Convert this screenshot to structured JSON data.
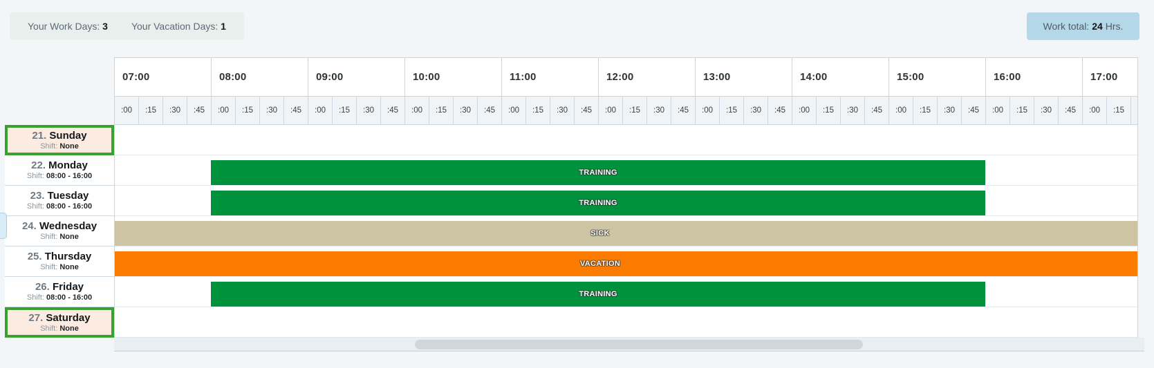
{
  "summary": {
    "work_days_label": "Your Work Days:",
    "work_days_value": "3",
    "vacation_days_label": "Your Vacation Days:",
    "vacation_days_value": "1"
  },
  "work_total": {
    "label": "Work total:",
    "value": "24",
    "unit": "Hrs."
  },
  "labels": {
    "shift_prefix": "Shift:"
  },
  "timeline": {
    "hours": [
      {
        "label": "07:00",
        "quarters": [
          ":00",
          ":15",
          ":30",
          ":45"
        ]
      },
      {
        "label": "08:00",
        "quarters": [
          ":00",
          ":15",
          ":30",
          ":45"
        ]
      },
      {
        "label": "09:00",
        "quarters": [
          ":00",
          ":15",
          ":30",
          ":45"
        ]
      },
      {
        "label": "10:00",
        "quarters": [
          ":00",
          ":15",
          ":30",
          ":45"
        ]
      },
      {
        "label": "11:00",
        "quarters": [
          ":00",
          ":15",
          ":30",
          ":45"
        ]
      },
      {
        "label": "12:00",
        "quarters": [
          ":00",
          ":15",
          ":30",
          ":45"
        ]
      },
      {
        "label": "13:00",
        "quarters": [
          ":00",
          ":15",
          ":30",
          ":45"
        ]
      },
      {
        "label": "14:00",
        "quarters": [
          ":00",
          ":15",
          ":30",
          ":45"
        ]
      },
      {
        "label": "15:00",
        "quarters": [
          ":00",
          ":15",
          ":30",
          ":45"
        ]
      },
      {
        "label": "16:00",
        "quarters": [
          ":00",
          ":15",
          ":30",
          ":45"
        ]
      },
      {
        "label": "17:00",
        "quarters": [
          ":00",
          ":15"
        ],
        "truncated": true
      }
    ]
  },
  "days": [
    {
      "number": "21.",
      "name": "Sunday",
      "shift": "None",
      "highlighted": true,
      "bar": null
    },
    {
      "number": "22.",
      "name": "Monday",
      "shift": "08:00 - 16:00",
      "highlighted": false,
      "bar": {
        "label": "TRAINING",
        "type": "training",
        "start": "08:00",
        "end": "16:00"
      }
    },
    {
      "number": "23.",
      "name": "Tuesday",
      "shift": "08:00 - 16:00",
      "highlighted": false,
      "bar": {
        "label": "TRAINING",
        "type": "training",
        "start": "08:00",
        "end": "16:00"
      }
    },
    {
      "number": "24.",
      "name": "Wednesday",
      "shift": "None",
      "highlighted": false,
      "bar": {
        "label": "SICK",
        "type": "sick",
        "full_width": true
      }
    },
    {
      "number": "25.",
      "name": "Thursday",
      "shift": "None",
      "highlighted": false,
      "bar": {
        "label": "VACATION",
        "type": "vacation",
        "full_width": true
      }
    },
    {
      "number": "26.",
      "name": "Friday",
      "shift": "08:00 - 16:00",
      "highlighted": false,
      "bar": {
        "label": "TRAINING",
        "type": "training",
        "start": "08:00",
        "end": "16:00"
      }
    },
    {
      "number": "27.",
      "name": "Saturday",
      "shift": "None",
      "highlighted": true,
      "bar": null
    }
  ],
  "colors": {
    "training": "#00913c",
    "sick": "#ccc4a3",
    "vacation": "#fb7c00",
    "highlight_border": "#38a22e",
    "highlight_bg": "#fcebe0",
    "summary_bg": "#e8efed",
    "work_total_bg": "#b4d8e8"
  }
}
